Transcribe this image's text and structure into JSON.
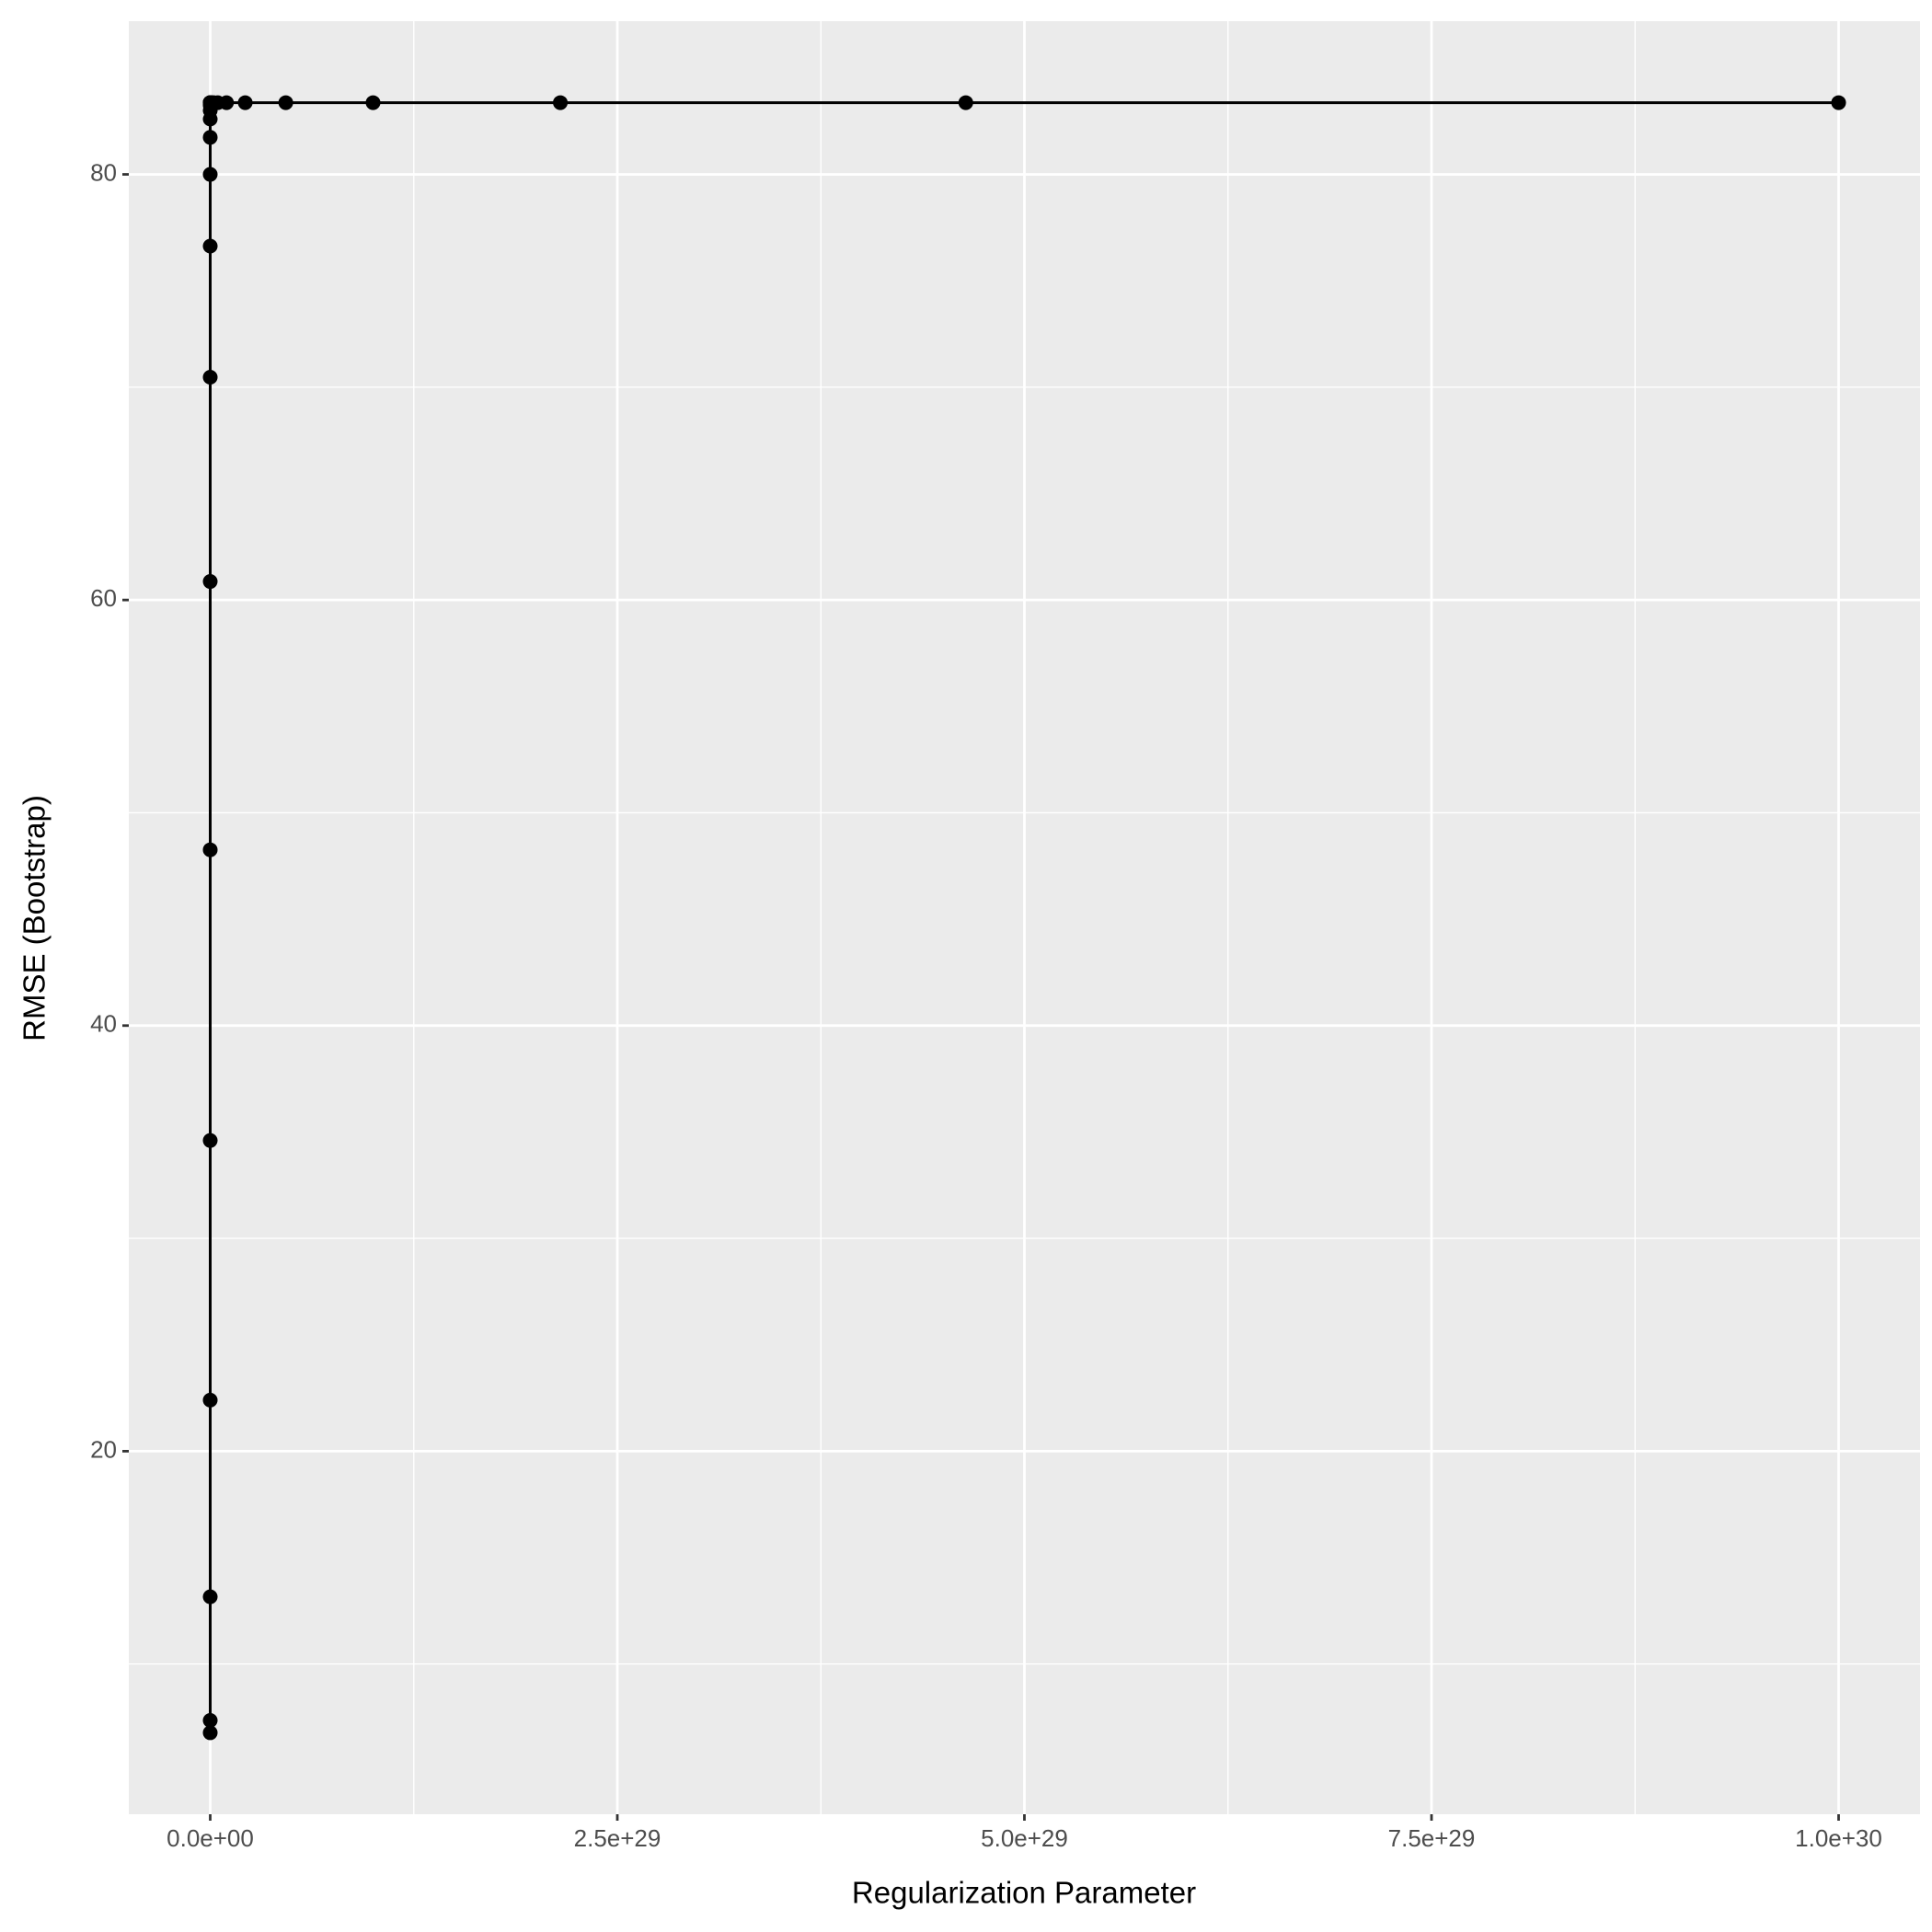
{
  "chart_data": {
    "type": "line",
    "xlabel": "Regularization Parameter",
    "ylabel": "RMSE (Bootstrap)",
    "x": [
      0.01,
      0.0215,
      0.0464,
      0.1,
      0.215,
      0.464,
      1,
      2.15,
      4.64,
      10,
      21.5,
      46.4,
      100,
      215,
      1000,
      1000000.0,
      10000000000.0,
      1000000000000000.0,
      1e+20,
      1e+25,
      1e+26,
      1e+27,
      2.15e+27,
      4.64e+27,
      1e+28,
      2.15e+28,
      4.64e+28,
      1e+29,
      2.15e+29,
      4.64e+29,
      1e+30
    ],
    "values": [
      6.77,
      7.35,
      13.16,
      22.4,
      34.6,
      48.26,
      60.87,
      70.47,
      76.63,
      80.0,
      81.74,
      82.6,
      83.0,
      83.25,
      83.37,
      83.37,
      83.37,
      83.37,
      83.37,
      83.37,
      83.37,
      83.37,
      83.37,
      83.37,
      83.37,
      83.37,
      83.37,
      83.37,
      83.37,
      83.37,
      83.37
    ],
    "color": "#000000",
    "xlim": [
      -5e+28,
      1.05e+30
    ],
    "xticks": [
      {
        "value": 0,
        "label": "0.0e+00"
      },
      {
        "value": 2.5e+29,
        "label": "2.5e+29"
      },
      {
        "value": 5e+29,
        "label": "5.0e+29"
      },
      {
        "value": 7.5e+29,
        "label": "7.5e+29"
      },
      {
        "value": 1e+30,
        "label": "1.0e+30"
      }
    ],
    "ylim": [
      2.94,
      87.2
    ],
    "yticks": [
      20,
      40,
      60,
      80
    ],
    "grid": true,
    "minor_grid": true
  }
}
